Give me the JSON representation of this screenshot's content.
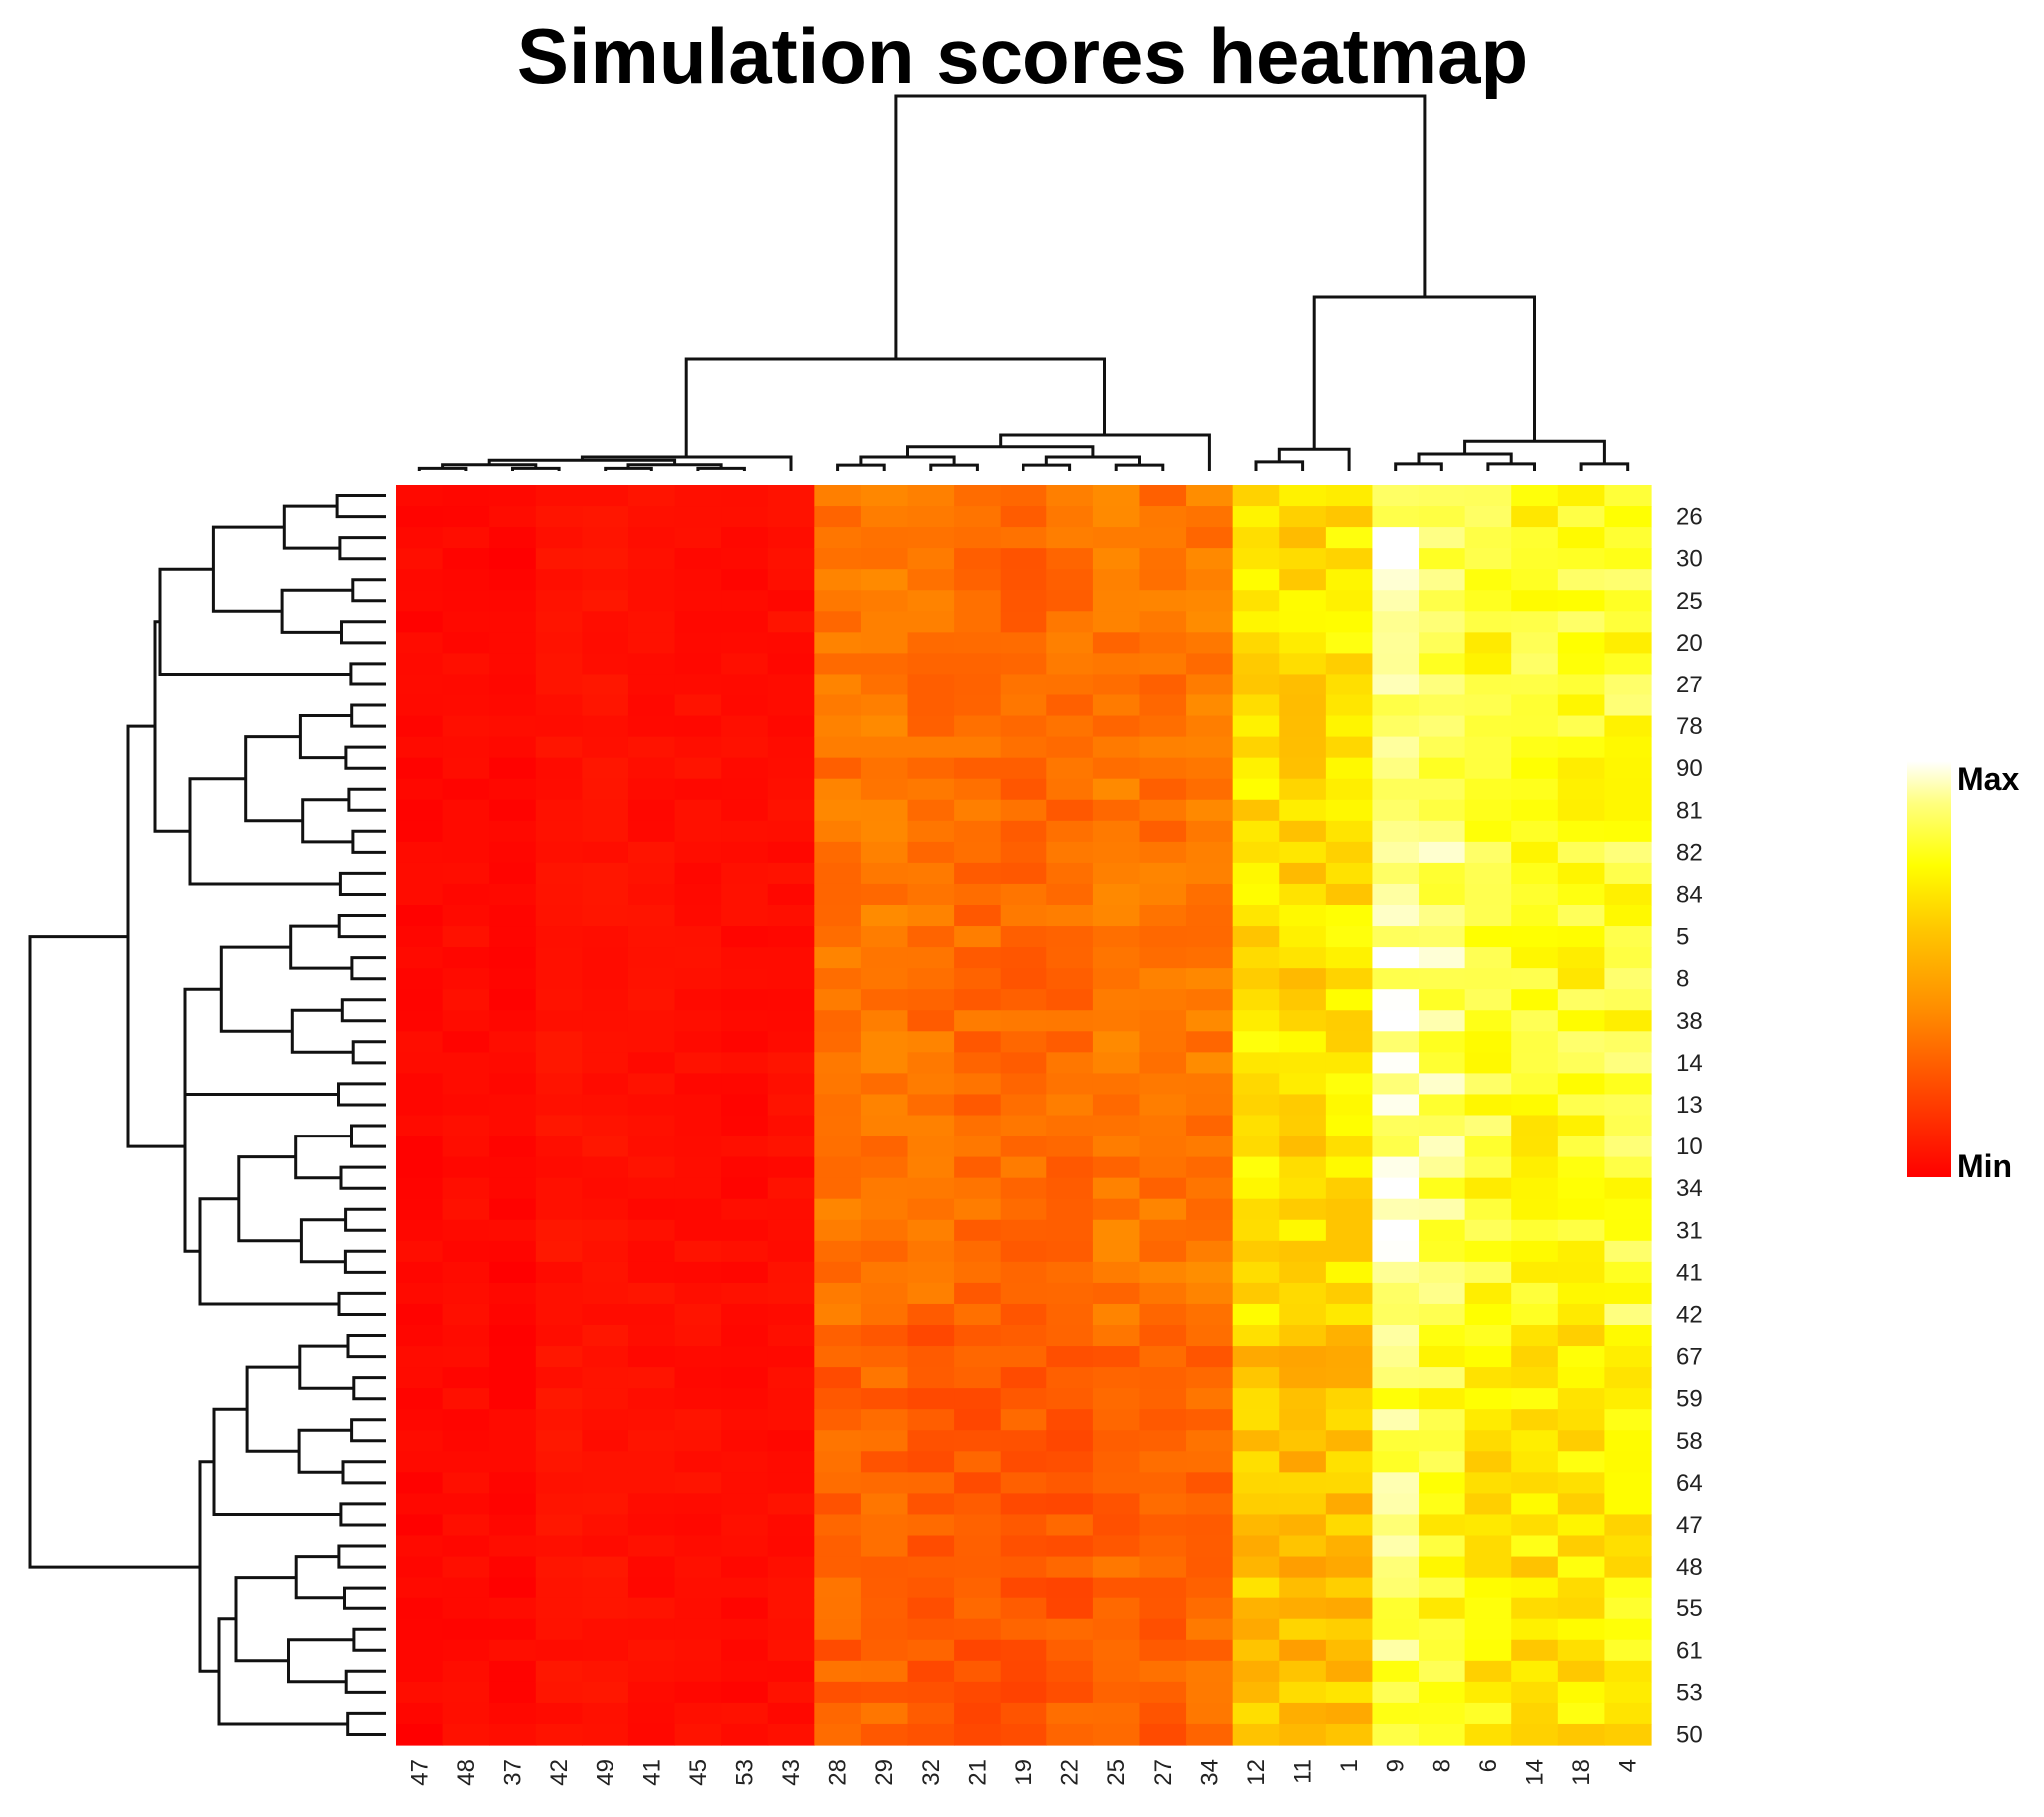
{
  "chart_data": {
    "type": "heatmap",
    "title": "Simulation scores heatmap",
    "xlabel": "",
    "ylabel": "",
    "color_scale": {
      "low_label": "Min",
      "high_label": "Max",
      "colors": [
        "#ff0000",
        "#ff4500",
        "#ff8c00",
        "#ffc800",
        "#ffff00",
        "#ffff80",
        "#ffffff"
      ]
    },
    "column_labels": [
      "47",
      "48",
      "37",
      "42",
      "49",
      "41",
      "45",
      "53",
      "43",
      "28",
      "29",
      "32",
      "21",
      "19",
      "22",
      "25",
      "27",
      "34",
      "12",
      "11",
      "1",
      "9",
      "8",
      "6",
      "14",
      "18",
      "4"
    ],
    "row_labels_shown": [
      "26",
      "30",
      "25",
      "20",
      "27",
      "78",
      "90",
      "81",
      "82",
      "84",
      "5",
      "8",
      "38",
      "14",
      "13",
      "10",
      "34",
      "31",
      "41",
      "42",
      "67",
      "59",
      "58",
      "64",
      "47",
      "48",
      "55",
      "61",
      "53",
      "50"
    ],
    "row_count": 60,
    "column_levels": [
      0.02,
      0.03,
      0.02,
      0.05,
      0.05,
      0.04,
      0.04,
      0.03,
      0.04,
      0.3,
      0.31,
      0.29,
      0.28,
      0.27,
      0.28,
      0.31,
      0.3,
      0.32,
      0.62,
      0.6,
      0.63,
      0.88,
      0.82,
      0.74,
      0.72,
      0.73,
      0.75
    ],
    "row_group_offsets": [
      {
        "from_row": 0,
        "to_row": 39,
        "offset": 0.05
      },
      {
        "from_row": 40,
        "to_row": 59,
        "offset": -0.04
      }
    ],
    "column_dendrogram": "hierarchical clustering of columns",
    "row_dendrogram": "hierarchical clustering of rows",
    "legend_position": "right",
    "grid": false
  }
}
